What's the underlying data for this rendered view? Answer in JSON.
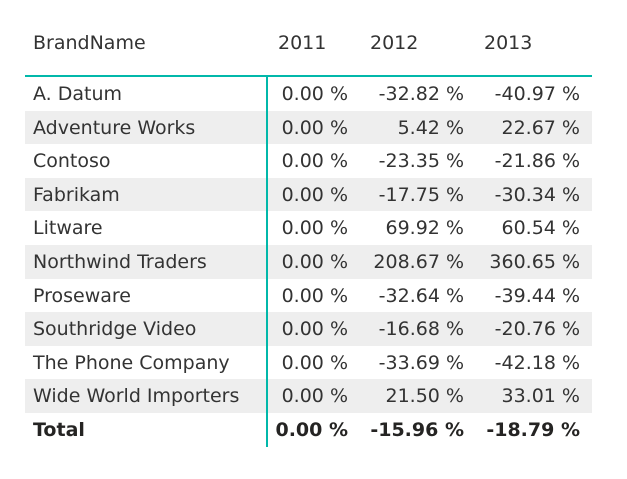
{
  "table": {
    "columns": [
      "BrandName",
      "2011",
      "2012",
      "2013"
    ],
    "rows": [
      {
        "brand": "A. Datum",
        "y2011": "0.00 %",
        "y2012": "-32.82 %",
        "y2013": "-40.97 %"
      },
      {
        "brand": "Adventure Works",
        "y2011": "0.00 %",
        "y2012": "5.42 %",
        "y2013": "22.67 %"
      },
      {
        "brand": "Contoso",
        "y2011": "0.00 %",
        "y2012": "-23.35 %",
        "y2013": "-21.86 %"
      },
      {
        "brand": "Fabrikam",
        "y2011": "0.00 %",
        "y2012": "-17.75 %",
        "y2013": "-30.34 %"
      },
      {
        "brand": "Litware",
        "y2011": "0.00 %",
        "y2012": "69.92 %",
        "y2013": "60.54 %"
      },
      {
        "brand": "Northwind Traders",
        "y2011": "0.00 %",
        "y2012": "208.67 %",
        "y2013": "360.65 %"
      },
      {
        "brand": "Proseware",
        "y2011": "0.00 %",
        "y2012": "-32.64 %",
        "y2013": "-39.44 %"
      },
      {
        "brand": "Southridge Video",
        "y2011": "0.00 %",
        "y2012": "-16.68 %",
        "y2013": "-20.76 %"
      },
      {
        "brand": "The Phone Company",
        "y2011": "0.00 %",
        "y2012": "-33.69 %",
        "y2013": "-42.18 %"
      },
      {
        "brand": "Wide World Importers",
        "y2011": "0.00 %",
        "y2012": "21.50 %",
        "y2013": "33.01 %"
      }
    ],
    "total": {
      "label": "Total",
      "y2011": "0.00 %",
      "y2012": "-15.96 %",
      "y2013": "-18.79 %"
    }
  },
  "colors": {
    "accent": "#01b8aa",
    "band": "#eeeeee",
    "text": "#333333"
  }
}
